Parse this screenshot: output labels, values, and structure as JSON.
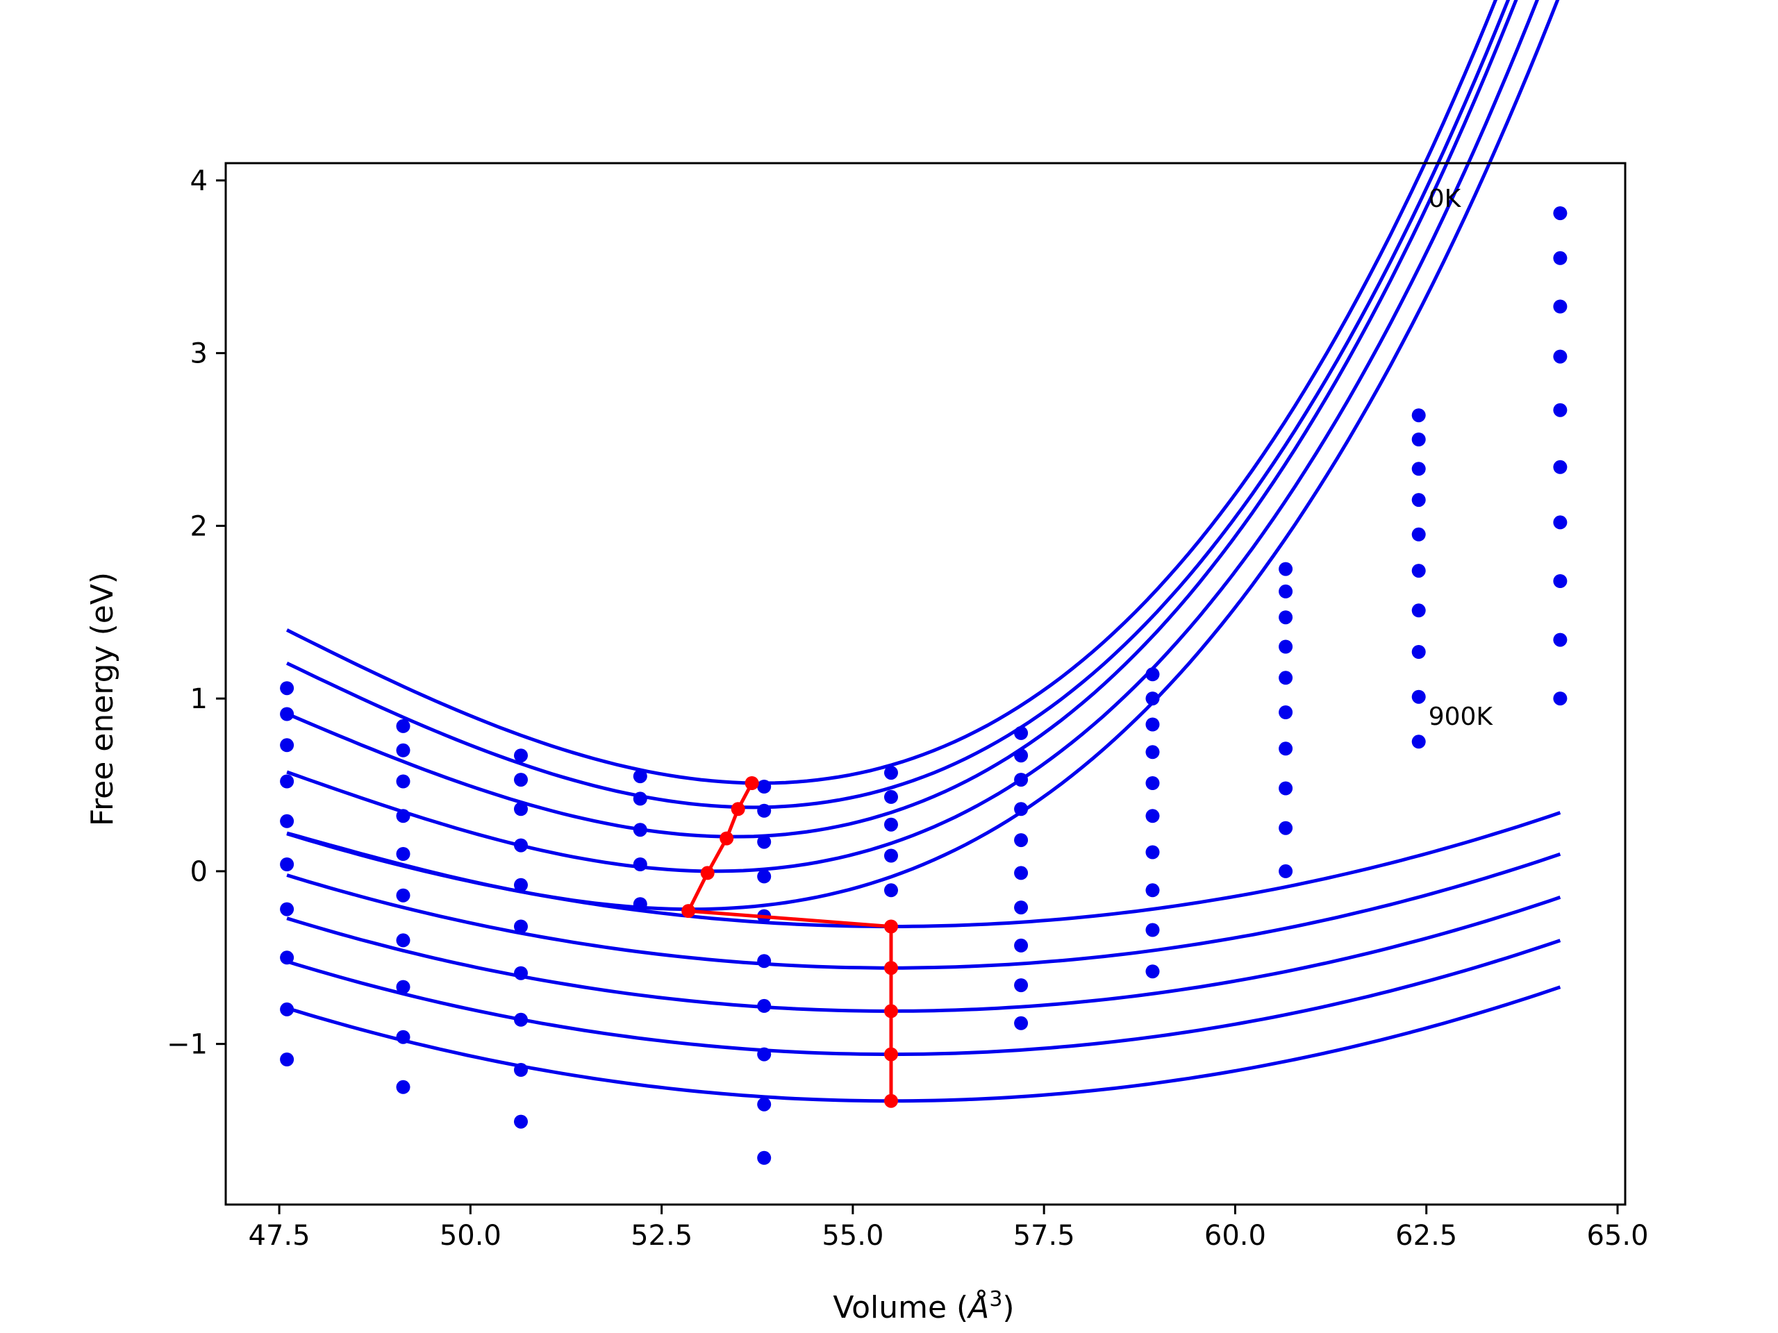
{
  "chart_data": {
    "type": "scatter",
    "xlabel": "Volume (",
    "xlabel_unit": "Å",
    "xlabel_exp": "3",
    "xlabel_close": ")",
    "ylabel": "Free energy (eV)",
    "xlim": [
      46.8,
      65.1
    ],
    "ylim": [
      -1.93,
      4.1
    ],
    "xticks": [
      47.5,
      50.0,
      52.5,
      55.0,
      57.5,
      60.0,
      62.5,
      65.0
    ],
    "xtick_labels": [
      "47.5",
      "50.0",
      "52.5",
      "55.0",
      "57.5",
      "60.0",
      "62.5",
      "65.0"
    ],
    "yticks": [
      -1,
      0,
      1,
      2,
      3,
      4
    ],
    "ytick_labels": [
      "−1",
      "0",
      "1",
      "2",
      "3",
      "4"
    ],
    "grid": false,
    "colors": {
      "points": "#0000ee",
      "fits": "#0000ee",
      "minima": "#ff0000"
    },
    "annotations": [
      {
        "text": "0K",
        "x": 62.5,
        "y": 3.9
      },
      {
        "text": "900K",
        "x": 62.5,
        "y": 0.9
      }
    ],
    "volumes": [
      47.6,
      49.12,
      50.66,
      52.22,
      53.84,
      55.5,
      57.2,
      58.92,
      60.66,
      62.4,
      64.25
    ],
    "point_series": [
      [
        1.06,
        0.84,
        0.67,
        0.55,
        0.49,
        0.57,
        0.8,
        1.14,
        1.75,
        2.64,
        3.81
      ],
      [
        0.91,
        0.7,
        0.53,
        0.42,
        0.35,
        0.43,
        0.67,
        1.0,
        1.62,
        2.5,
        3.55
      ],
      [
        0.73,
        0.52,
        0.36,
        0.24,
        0.17,
        0.27,
        0.53,
        0.85,
        1.47,
        2.33,
        3.27
      ],
      [
        0.52,
        0.32,
        0.15,
        0.04,
        -0.03,
        0.09,
        0.36,
        0.69,
        1.3,
        2.15,
        2.98
      ],
      [
        0.29,
        0.1,
        -0.08,
        -0.19,
        -0.26,
        -0.11,
        0.18,
        0.51,
        1.12,
        1.95,
        2.67
      ],
      [
        0.04,
        -0.14,
        -0.32,
        null,
        -0.52,
        null,
        -0.01,
        0.32,
        0.92,
        1.74,
        2.34
      ],
      [
        -0.22,
        -0.4,
        -0.59,
        null,
        -0.78,
        null,
        -0.21,
        0.11,
        0.71,
        1.51,
        2.02
      ],
      [
        -0.5,
        -0.67,
        -0.86,
        null,
        -1.06,
        null,
        -0.43,
        -0.11,
        0.48,
        1.27,
        1.68
      ],
      [
        -0.8,
        -0.96,
        -1.15,
        null,
        -1.35,
        null,
        -0.66,
        -0.34,
        0.25,
        1.01,
        1.34
      ],
      [
        -1.09,
        -1.25,
        -1.45,
        null,
        -1.66,
        null,
        -0.88,
        -0.58,
        0.0,
        0.75,
        1.0
      ]
    ],
    "fit_curves": [
      {
        "x0": 53.8,
        "y0": 0.51,
        "k": 0.0333,
        "c": 0.00165,
        "xmin": 47.6,
        "xmax": 64.25
      },
      {
        "x0": 53.7,
        "y0": 0.37,
        "k": 0.0322,
        "c": 0.0016,
        "xmin": 47.6,
        "xmax": 64.25
      },
      {
        "x0": 53.45,
        "y0": 0.2,
        "k": 0.0301,
        "c": 0.00159,
        "xmin": 47.6,
        "xmax": 64.25
      },
      {
        "x0": 53.2,
        "y0": 0.0,
        "k": 0.027,
        "c": 0.00155,
        "xmin": 47.6,
        "xmax": 64.25
      },
      {
        "x0": 52.9,
        "y0": -0.22,
        "k": 0.0238,
        "c": 0.00153,
        "xmin": 47.6,
        "xmax": 64.25
      },
      {
        "x0": 55.5,
        "y0": -0.32,
        "k": 0.00861,
        "c": 0.0,
        "xmin": 47.6,
        "xmax": 64.25
      },
      {
        "x0": 55.5,
        "y0": -0.56,
        "k": 0.00861,
        "c": 0.0,
        "xmin": 47.6,
        "xmax": 64.25
      },
      {
        "x0": 55.5,
        "y0": -0.81,
        "k": 0.00861,
        "c": 0.0,
        "xmin": 47.6,
        "xmax": 64.25
      },
      {
        "x0": 55.5,
        "y0": -1.06,
        "k": 0.00861,
        "c": 0.0,
        "xmin": 47.6,
        "xmax": 64.25
      },
      {
        "x0": 55.5,
        "y0": -1.33,
        "k": 0.00861,
        "c": 0.0,
        "xmin": 47.6,
        "xmax": 64.25
      }
    ],
    "minima_path": {
      "x": [
        53.68,
        53.5,
        53.35,
        53.1,
        52.85,
        55.5,
        55.5,
        55.5,
        55.5,
        55.5
      ],
      "y": [
        0.51,
        0.36,
        0.19,
        -0.01,
        -0.23,
        -0.32,
        -0.56,
        -0.81,
        -1.06,
        -1.33
      ]
    }
  }
}
